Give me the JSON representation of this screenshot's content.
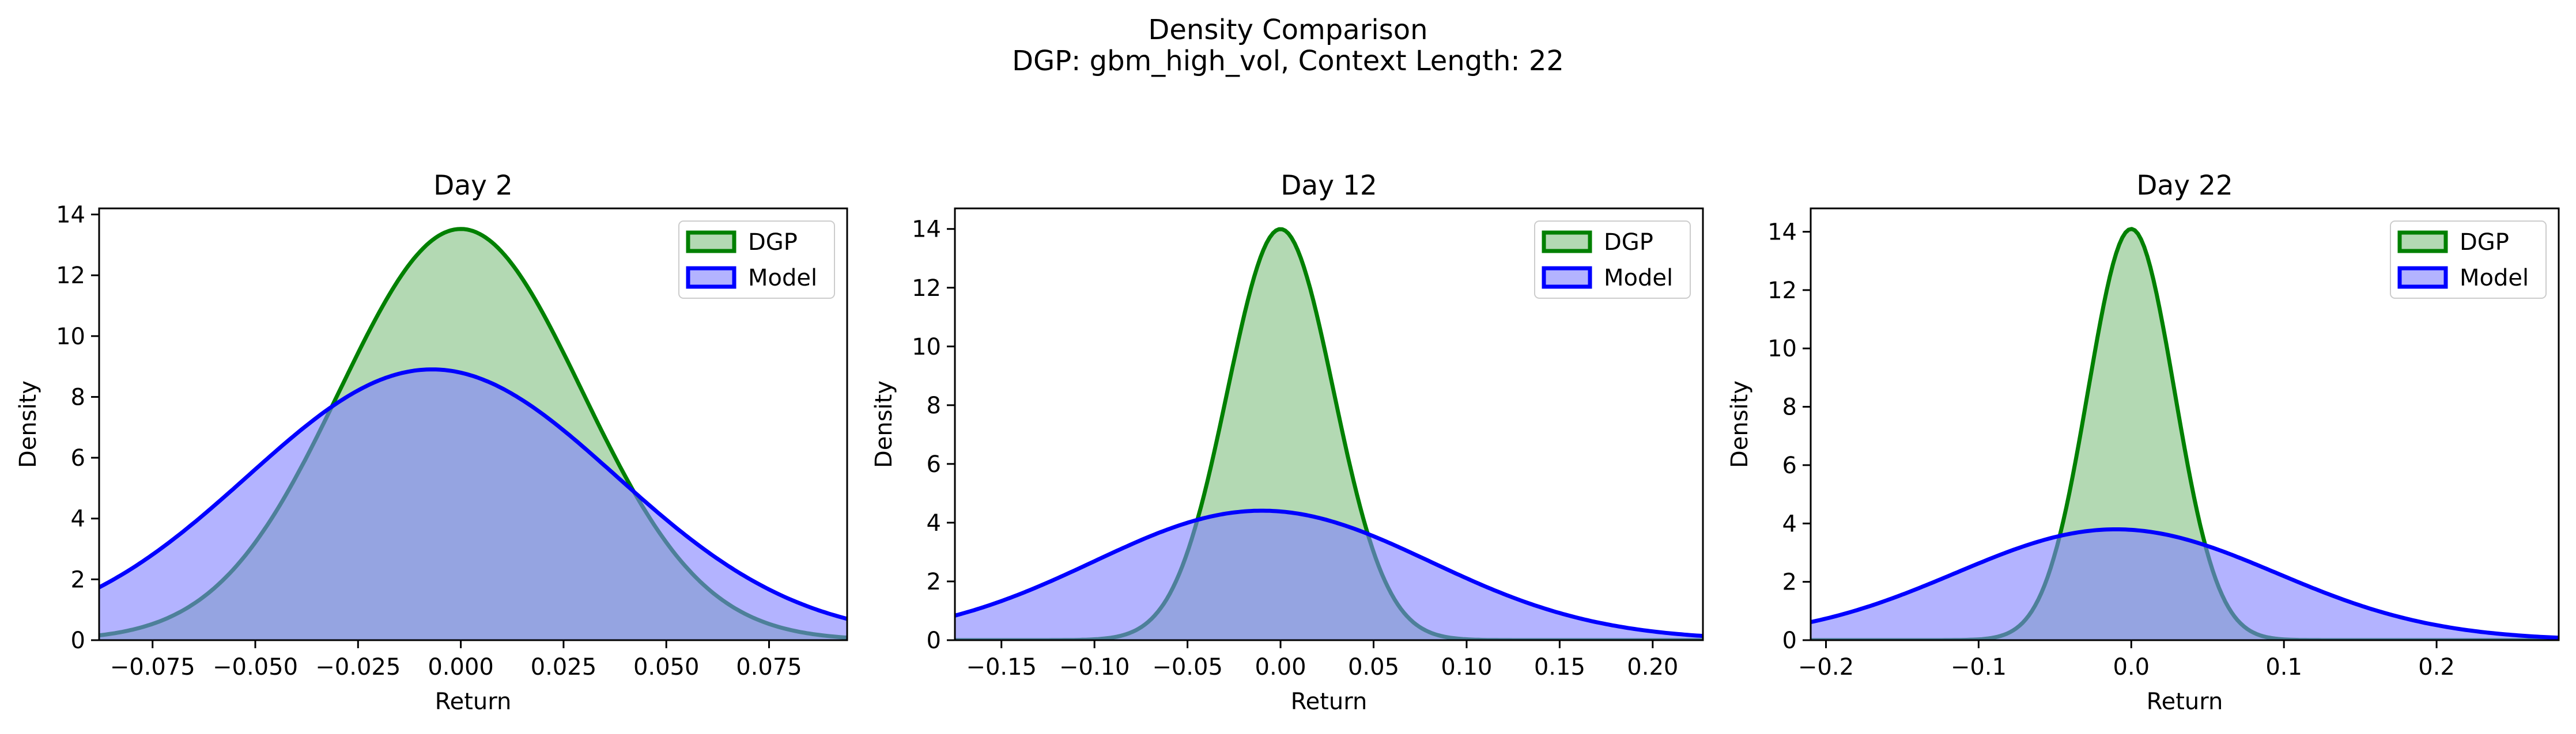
{
  "figure": {
    "title_line1": "Density Comparison",
    "title_line2": "DGP: gbm_high_vol, Context Length: 22"
  },
  "colors": {
    "dgp_line": "#008000",
    "dgp_fill": "#80c080",
    "model_line": "#0000ff",
    "model_fill": "#8080ff"
  },
  "chart_data": [
    {
      "type": "area",
      "title": "Day 2",
      "xlabel": "Return",
      "ylabel": "Density",
      "xlim": [
        -0.088,
        0.094
      ],
      "ylim": [
        0,
        14.2
      ],
      "xticks": [
        -0.075,
        -0.05,
        -0.025,
        0.0,
        0.025,
        0.05,
        0.075
      ],
      "xtick_labels": [
        "−0.075",
        "−0.050",
        "−0.025",
        "0.000",
        "0.025",
        "0.050",
        "0.075"
      ],
      "yticks": [
        0,
        2,
        4,
        6,
        8,
        10,
        12,
        14
      ],
      "legend": "top-right",
      "grid": false,
      "series": [
        {
          "name": "DGP",
          "dist": "normal",
          "mean": 0.0,
          "sd": 0.0295
        },
        {
          "name": "Model",
          "dist": "normal",
          "mean": -0.007,
          "sd": 0.0448
        }
      ]
    },
    {
      "type": "area",
      "title": "Day 12",
      "xlabel": "Return",
      "ylabel": "Density",
      "xlim": [
        -0.175,
        0.227
      ],
      "ylim": [
        0,
        14.7
      ],
      "xticks": [
        -0.15,
        -0.1,
        -0.05,
        0.0,
        0.05,
        0.1,
        0.15,
        0.2
      ],
      "xtick_labels": [
        "−0.15",
        "−0.10",
        "−0.05",
        "0.00",
        "0.05",
        "0.10",
        "0.15",
        "0.20"
      ],
      "yticks": [
        0,
        2,
        4,
        6,
        8,
        10,
        12,
        14
      ],
      "legend": "top-right",
      "grid": false,
      "series": [
        {
          "name": "DGP",
          "dist": "normal",
          "mean": 0.0,
          "sd": 0.0285
        },
        {
          "name": "Model",
          "dist": "normal",
          "mean": -0.01,
          "sd": 0.0905
        }
      ]
    },
    {
      "type": "area",
      "title": "Day 22",
      "xlabel": "Return",
      "ylabel": "Density",
      "xlim": [
        -0.21,
        0.28
      ],
      "ylim": [
        0,
        14.8
      ],
      "xticks": [
        -0.2,
        -0.1,
        0.0,
        0.1,
        0.2
      ],
      "xtick_labels": [
        "−0.2",
        "−0.1",
        "0.0",
        "0.1",
        "0.2"
      ],
      "yticks": [
        0,
        2,
        4,
        6,
        8,
        10,
        12,
        14
      ],
      "legend": "top-right",
      "grid": false,
      "series": [
        {
          "name": "DGP",
          "dist": "normal",
          "mean": 0.0,
          "sd": 0.0283
        },
        {
          "name": "Model",
          "dist": "normal",
          "mean": -0.01,
          "sd": 0.105
        }
      ]
    }
  ]
}
